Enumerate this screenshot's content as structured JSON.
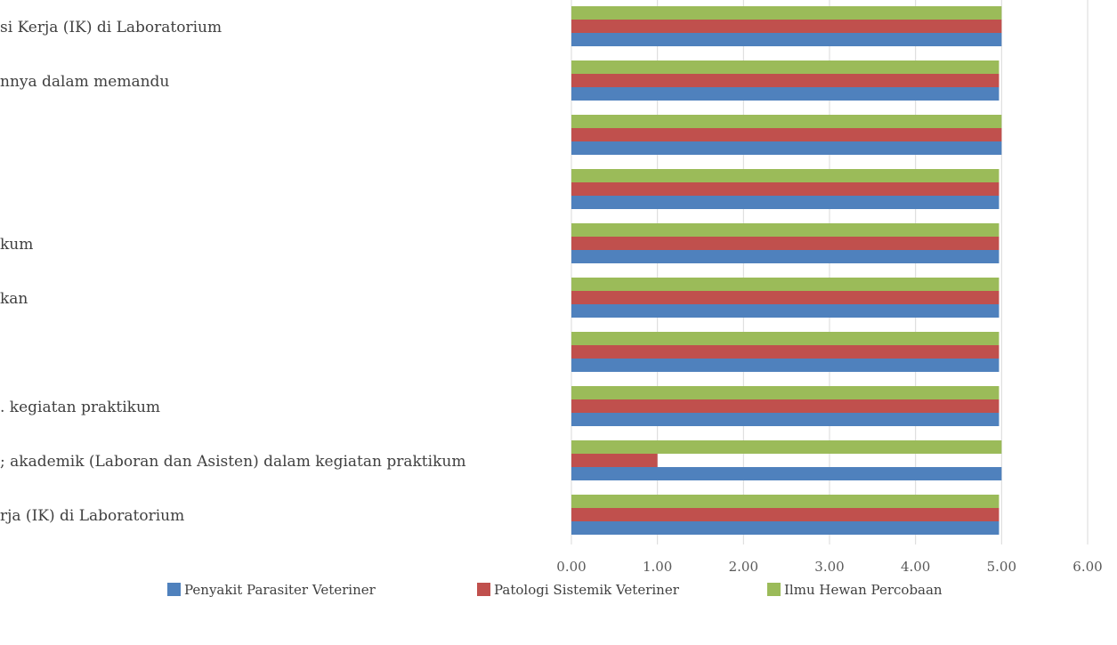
{
  "chart_data": {
    "type": "bar",
    "orientation": "horizontal",
    "categories": [
      "si Kerja (IK) di Laboratorium",
      "nnya dalam memandu",
      "",
      "",
      "kum",
      "kan",
      "",
      ". kegiatan praktikum",
      "; akademik (Laboran dan Asisten) dalam kegiatan praktikum",
      "rja (IK) di Laboratorium"
    ],
    "series": [
      {
        "name": "Ilmu Hewan Percobaan",
        "color": "#9bbb59",
        "values": [
          5.0,
          4.97,
          5.0,
          4.97,
          4.97,
          4.97,
          4.97,
          4.97,
          5.0,
          4.97
        ]
      },
      {
        "name": "Patologi Sistemik Veteriner",
        "color": "#c0504d",
        "values": [
          5.0,
          4.97,
          5.0,
          4.97,
          4.97,
          4.97,
          4.97,
          4.97,
          1.0,
          4.97
        ]
      },
      {
        "name": "Penyakit Parasiter Veteriner",
        "color": "#4f81bd",
        "values": [
          5.0,
          4.97,
          5.0,
          4.97,
          4.97,
          4.97,
          4.97,
          4.97,
          5.0,
          4.97
        ]
      }
    ],
    "xlim": [
      0,
      6
    ],
    "xticks": [
      "0.00",
      "1.00",
      "2.00",
      "3.00",
      "4.00",
      "5.00",
      "6.00"
    ],
    "grid": true,
    "legend_position": "bottom",
    "legend": [
      {
        "label": "Penyakit Parasiter Veteriner",
        "color": "#4f81bd"
      },
      {
        "label": "Patologi Sistemik Veteriner",
        "color": "#c0504d"
      },
      {
        "label": "Ilmu Hewan Percobaan",
        "color": "#9bbb59"
      }
    ]
  }
}
